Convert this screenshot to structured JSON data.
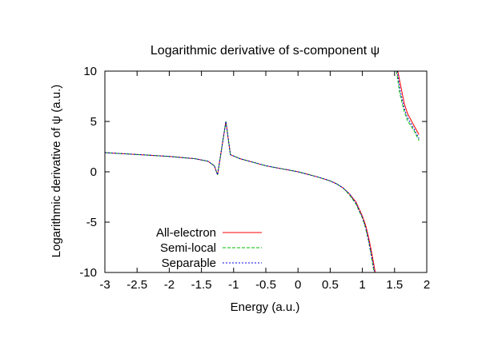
{
  "chart_data": {
    "type": "line",
    "title": "Logarithmic derivative of s-component ψ",
    "xlabel": "Energy (a.u.)",
    "ylabel": "Logarithmic derivative of ψ (a.u.)",
    "xlim": [
      -3,
      2
    ],
    "ylim": [
      -10,
      10
    ],
    "xticks": [
      -3,
      -2.5,
      -2,
      -1.5,
      -1,
      -0.5,
      0,
      0.5,
      1,
      1.5,
      2
    ],
    "xtick_labels": [
      "-3",
      "-2.5",
      "-2",
      "-1.5",
      "-1",
      "-0.5",
      "0",
      "0.5",
      "1",
      "1.5",
      "2"
    ],
    "yticks": [
      -10,
      -5,
      0,
      5,
      10
    ],
    "ytick_labels": [
      "-10",
      "-5",
      "0",
      "5",
      "10"
    ],
    "grid": false,
    "legend_position": "bottom-left",
    "series": [
      {
        "name": "All-electron",
        "color": "#ff0000",
        "dash": "solid",
        "segments": [
          [
            [
              -3,
              1.9
            ],
            [
              -2.5,
              1.72
            ],
            [
              -2,
              1.53
            ],
            [
              -1.6,
              1.3
            ],
            [
              -1.4,
              1.05
            ],
            [
              -1.3,
              0.6
            ],
            [
              -1.25,
              -0.3
            ],
            [
              -1.12,
              5.0
            ],
            [
              -1.05,
              1.7
            ],
            [
              -0.9,
              1.3
            ],
            [
              -0.5,
              0.6
            ],
            [
              0,
              0.0
            ],
            [
              0.3,
              -0.5
            ],
            [
              0.5,
              -0.9
            ],
            [
              0.6,
              -1.2
            ],
            [
              0.7,
              -1.6
            ],
            [
              0.8,
              -2.2
            ],
            [
              0.9,
              -3.0
            ],
            [
              1.0,
              -4.4
            ],
            [
              1.05,
              -5.3
            ],
            [
              1.1,
              -6.6
            ],
            [
              1.15,
              -8.2
            ],
            [
              1.2,
              -10.0
            ]
          ],
          [
            [
              1.55,
              10.0
            ],
            [
              1.6,
              8.4
            ],
            [
              1.65,
              6.8
            ],
            [
              1.7,
              5.8
            ],
            [
              1.8,
              4.6
            ],
            [
              1.88,
              3.7
            ]
          ]
        ]
      },
      {
        "name": "Semi-local",
        "color": "#00bb00",
        "dash": "dashed",
        "segments": [
          [
            [
              -3,
              1.9
            ],
            [
              -2.5,
              1.72
            ],
            [
              -2,
              1.53
            ],
            [
              -1.6,
              1.3
            ],
            [
              -1.4,
              1.05
            ],
            [
              -1.3,
              0.6
            ],
            [
              -1.25,
              -0.3
            ],
            [
              -1.12,
              5.0
            ],
            [
              -1.05,
              1.7
            ],
            [
              -0.9,
              1.3
            ],
            [
              -0.5,
              0.6
            ],
            [
              0,
              0.0
            ],
            [
              0.3,
              -0.5
            ],
            [
              0.5,
              -0.9
            ],
            [
              0.6,
              -1.2
            ],
            [
              0.7,
              -1.6
            ],
            [
              0.8,
              -2.3
            ],
            [
              0.9,
              -3.2
            ],
            [
              1.0,
              -4.6
            ],
            [
              1.05,
              -5.6
            ],
            [
              1.1,
              -7.0
            ],
            [
              1.15,
              -8.8
            ],
            [
              1.18,
              -10.0
            ]
          ],
          [
            [
              1.53,
              10.0
            ],
            [
              1.58,
              7.8
            ],
            [
              1.65,
              6.0
            ],
            [
              1.7,
              5.1
            ],
            [
              1.8,
              4.1
            ],
            [
              1.88,
              3.1
            ]
          ]
        ]
      },
      {
        "name": "Separable",
        "color": "#0000dd",
        "dash": "dotted",
        "segments": [
          [
            [
              -3,
              1.9
            ],
            [
              -2.5,
              1.72
            ],
            [
              -2,
              1.53
            ],
            [
              -1.6,
              1.3
            ],
            [
              -1.4,
              1.05
            ],
            [
              -1.3,
              0.6
            ],
            [
              -1.25,
              -0.3
            ],
            [
              -1.12,
              5.0
            ],
            [
              -1.05,
              1.7
            ],
            [
              -0.9,
              1.3
            ],
            [
              -0.5,
              0.6
            ],
            [
              0,
              0.0
            ],
            [
              0.3,
              -0.5
            ],
            [
              0.5,
              -0.9
            ],
            [
              0.6,
              -1.2
            ],
            [
              0.7,
              -1.6
            ],
            [
              0.8,
              -2.2
            ],
            [
              0.9,
              -3.1
            ],
            [
              1.0,
              -4.5
            ],
            [
              1.05,
              -5.5
            ],
            [
              1.1,
              -6.9
            ],
            [
              1.15,
              -8.6
            ],
            [
              1.19,
              -10.0
            ]
          ],
          [
            [
              1.54,
              10.0
            ],
            [
              1.59,
              8.0
            ],
            [
              1.65,
              6.3
            ],
            [
              1.7,
              5.4
            ],
            [
              1.8,
              4.3
            ],
            [
              1.88,
              3.3
            ]
          ]
        ]
      }
    ]
  }
}
